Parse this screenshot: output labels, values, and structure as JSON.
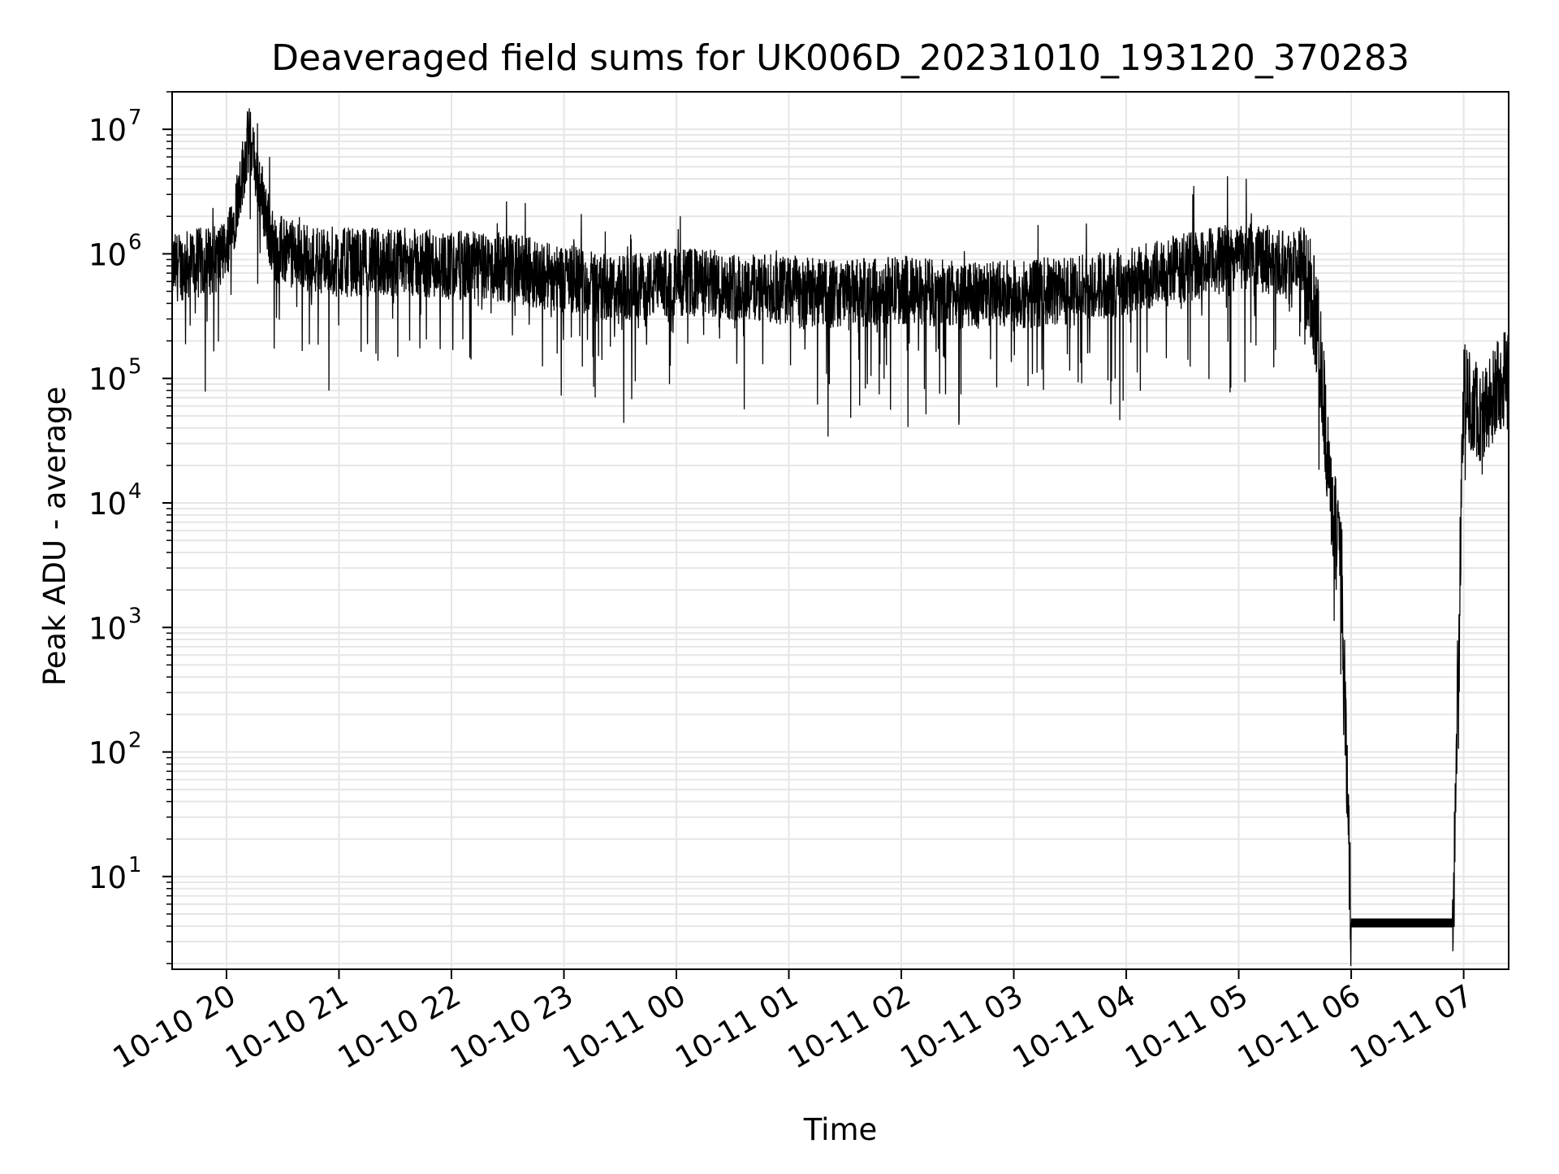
{
  "chart_data": {
    "type": "line",
    "title": "Deaveraged field sums for UK006D_20231010_193120_370283",
    "xlabel": "Time",
    "ylabel": "Peak ADU - average",
    "yscale": "log",
    "ylim": [
      1.8,
      20000000
    ],
    "xlim": [
      "2023-10-10 19:31",
      "2023-10-11 07:24"
    ],
    "grid": true,
    "x_ticks": [
      "10-10 20",
      "10-10 21",
      "10-10 22",
      "10-10 23",
      "10-11 00",
      "10-11 01",
      "10-11 02",
      "10-11 03",
      "10-11 04",
      "10-11 05",
      "10-11 06",
      "10-11 07"
    ],
    "y_ticks": [
      {
        "base": "10",
        "exp": "1",
        "value": 10
      },
      {
        "base": "10",
        "exp": "2",
        "value": 100
      },
      {
        "base": "10",
        "exp": "3",
        "value": 1000
      },
      {
        "base": "10",
        "exp": "4",
        "value": 10000
      },
      {
        "base": "10",
        "exp": "5",
        "value": 100000
      },
      {
        "base": "10",
        "exp": "6",
        "value": 1000000
      },
      {
        "base": "10",
        "exp": "7",
        "value": 10000000
      }
    ],
    "line_color": "#000000",
    "grid_color": "#e6e6e6",
    "series": [
      {
        "x": [
          "2023-10-10 19:31",
          "2023-10-10 20:00",
          "2023-10-10 20:12",
          "2023-10-10 20:25",
          "2023-10-10 20:40",
          "2023-10-10 21:00",
          "2023-10-10 21:30",
          "2023-10-10 22:00",
          "2023-10-10 22:30",
          "2023-10-10 23:00",
          "2023-10-10 23:30",
          "2023-10-11 00:00",
          "2023-10-11 00:30",
          "2023-10-11 01:00",
          "2023-10-11 01:30",
          "2023-10-11 02:00",
          "2023-10-11 02:30",
          "2023-10-11 03:00",
          "2023-10-11 03:30",
          "2023-10-11 04:00",
          "2023-10-11 04:30",
          "2023-10-11 05:00",
          "2023-10-11 05:35",
          "2023-10-11 05:43",
          "2023-10-11 05:48",
          "2023-10-11 05:55",
          "2023-10-11 06:00",
          "2023-10-11 06:30",
          "2023-10-11 06:54",
          "2023-10-11 07:00",
          "2023-10-11 07:10",
          "2023-10-11 07:24"
        ],
        "y": [
          900000,
          1100000,
          10000000,
          1300000,
          1100000,
          1000000,
          1000000,
          950000,
          900000,
          750000,
          600000,
          700000,
          650000,
          600000,
          550000,
          600000,
          550000,
          550000,
          600000,
          700000,
          900000,
          1100000,
          1000000,
          300000,
          20000,
          3000,
          4,
          4,
          4,
          100000,
          60000,
          150000
        ]
      }
    ]
  }
}
